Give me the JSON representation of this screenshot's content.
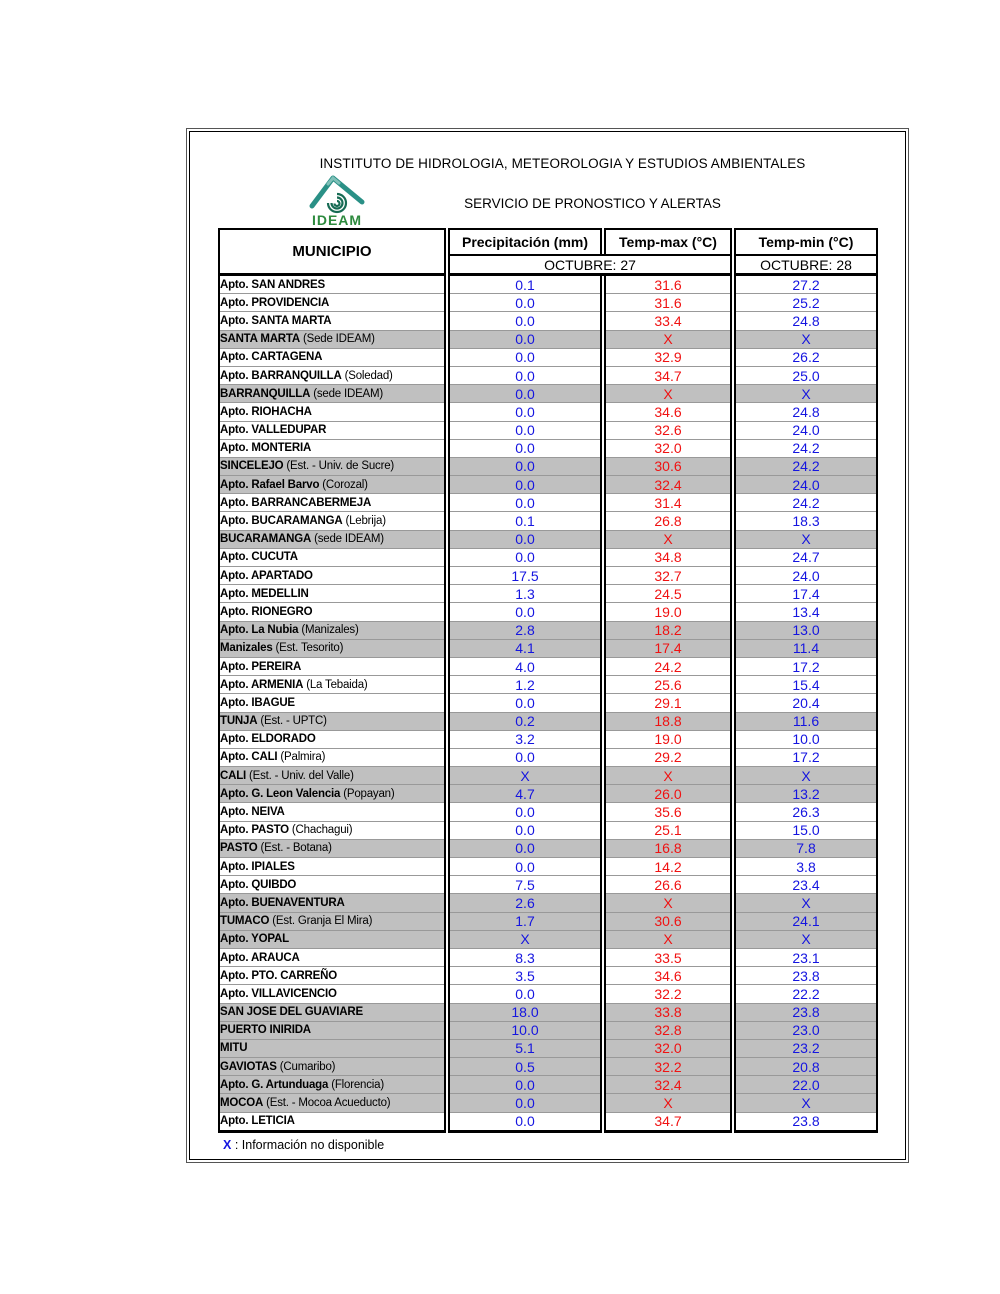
{
  "header": {
    "title": "INSTITUTO DE HIDROLOGIA, METEOROLOGIA Y ESTUDIOS AMBIENTALES",
    "subtitle": "SERVICIO DE PRONOSTICO Y ALERTAS",
    "logo_text": "IDEAM"
  },
  "table": {
    "columns": {
      "municipio": "MUNICIPIO",
      "precip": "Precipitación (mm)",
      "tmax": "Temp-max (°C)",
      "tmin": "Temp-min (°C)"
    },
    "date_headers": {
      "left": "OCTUBRE: 27",
      "right": "OCTUBRE: 28"
    },
    "rows": [
      {
        "name": "Apto. SAN ANDRES",
        "note": "",
        "shaded": false,
        "precip": "0.1",
        "tmax": "31.6",
        "tmin": "27.2"
      },
      {
        "name": "Apto. PROVIDENCIA",
        "note": "",
        "shaded": false,
        "precip": "0.0",
        "tmax": "31.6",
        "tmin": "25.2"
      },
      {
        "name": "Apto. SANTA MARTA",
        "note": "",
        "shaded": false,
        "precip": "0.0",
        "tmax": "33.4",
        "tmin": "24.8"
      },
      {
        "name": "SANTA MARTA",
        "note": "(Sede IDEAM)",
        "shaded": true,
        "precip": "0.0",
        "tmax": "X",
        "tmin": "X"
      },
      {
        "name": "Apto. CARTAGENA",
        "note": "",
        "shaded": false,
        "precip": "0.0",
        "tmax": "32.9",
        "tmin": "26.2"
      },
      {
        "name": "Apto. BARRANQUILLA",
        "note": "(Soledad)",
        "shaded": false,
        "precip": "0.0",
        "tmax": "34.7",
        "tmin": "25.0"
      },
      {
        "name": "BARRANQUILLA",
        "note": "(sede IDEAM)",
        "shaded": true,
        "precip": "0.0",
        "tmax": "X",
        "tmin": "X"
      },
      {
        "name": "Apto. RIOHACHA",
        "note": "",
        "shaded": false,
        "precip": "0.0",
        "tmax": "34.6",
        "tmin": "24.8"
      },
      {
        "name": "Apto. VALLEDUPAR",
        "note": "",
        "shaded": false,
        "precip": "0.0",
        "tmax": "32.6",
        "tmin": "24.0"
      },
      {
        "name": "Apto. MONTERIA",
        "note": "",
        "shaded": false,
        "precip": "0.0",
        "tmax": "32.0",
        "tmin": "24.2"
      },
      {
        "name": "SINCELEJO",
        "note": "(Est. - Univ. de Sucre)",
        "shaded": true,
        "precip": "0.0",
        "tmax": "30.6",
        "tmin": "24.2"
      },
      {
        "name": "Apto. Rafael Barvo",
        "note": "(Corozal)",
        "shaded": true,
        "precip": "0.0",
        "tmax": "32.4",
        "tmin": "24.0"
      },
      {
        "name": "Apto. BARRANCABERMEJA",
        "note": "",
        "shaded": false,
        "precip": "0.0",
        "tmax": "31.4",
        "tmin": "24.2"
      },
      {
        "name": "Apto. BUCARAMANGA",
        "note": "(Lebrija)",
        "shaded": false,
        "precip": "0.1",
        "tmax": "26.8",
        "tmin": "18.3"
      },
      {
        "name": "BUCARAMANGA",
        "note": "(sede IDEAM)",
        "shaded": true,
        "precip": "0.0",
        "tmax": "X",
        "tmin": "X"
      },
      {
        "name": "Apto. CUCUTA",
        "note": "",
        "shaded": false,
        "precip": "0.0",
        "tmax": "34.8",
        "tmin": "24.7"
      },
      {
        "name": "Apto. APARTADO",
        "note": "",
        "shaded": false,
        "precip": "17.5",
        "tmax": "32.7",
        "tmin": "24.0"
      },
      {
        "name": "Apto. MEDELLIN",
        "note": "",
        "shaded": false,
        "precip": "1.3",
        "tmax": "24.5",
        "tmin": "17.4"
      },
      {
        "name": "Apto. RIONEGRO",
        "note": "",
        "shaded": false,
        "precip": "0.0",
        "tmax": "19.0",
        "tmin": "13.4"
      },
      {
        "name": "Apto. La Nubia",
        "note": "(Manizales)",
        "shaded": true,
        "precip": "2.8",
        "tmax": "18.2",
        "tmin": "13.0"
      },
      {
        "name": "Manizales",
        "note": "(Est. Tesorito)",
        "shaded": true,
        "precip": "4.1",
        "tmax": "17.4",
        "tmin": "11.4"
      },
      {
        "name": "Apto. PEREIRA",
        "note": "",
        "shaded": false,
        "precip": "4.0",
        "tmax": "24.2",
        "tmin": "17.2"
      },
      {
        "name": "Apto. ARMENIA",
        "note": "(La Tebaida)",
        "shaded": false,
        "precip": "1.2",
        "tmax": "25.6",
        "tmin": "15.4"
      },
      {
        "name": "Apto. IBAGUE",
        "note": "",
        "shaded": false,
        "precip": "0.0",
        "tmax": "29.1",
        "tmin": "20.4"
      },
      {
        "name": "TUNJA",
        "note": "(Est. - UPTC)",
        "shaded": true,
        "precip": "0.2",
        "tmax": "18.8",
        "tmin": "11.6"
      },
      {
        "name": "Apto. ELDORADO",
        "note": "",
        "shaded": false,
        "precip": "3.2",
        "tmax": "19.0",
        "tmin": "10.0"
      },
      {
        "name": "Apto. CALI",
        "note": "(Palmira)",
        "shaded": false,
        "precip": "0.0",
        "tmax": "29.2",
        "tmin": "17.2"
      },
      {
        "name": "CALI",
        "note": "(Est. - Univ. del Valle)",
        "shaded": true,
        "precip": "X",
        "tmax": "X",
        "tmin": "X"
      },
      {
        "name": "Apto. G. Leon Valencia",
        "note": "(Popayan)",
        "shaded": true,
        "precip": "4.7",
        "tmax": "26.0",
        "tmin": "13.2"
      },
      {
        "name": "Apto. NEIVA",
        "note": "",
        "shaded": false,
        "precip": "0.0",
        "tmax": "35.6",
        "tmin": "26.3"
      },
      {
        "name": "Apto. PASTO",
        "note": "(Chachagui)",
        "shaded": false,
        "precip": "0.0",
        "tmax": "25.1",
        "tmin": "15.0"
      },
      {
        "name": "PASTO",
        "note": "(Est. - Botana)",
        "shaded": true,
        "precip": "0.0",
        "tmax": "16.8",
        "tmin": "7.8"
      },
      {
        "name": "Apto. IPIALES",
        "note": "",
        "shaded": false,
        "precip": "0.0",
        "tmax": "14.2",
        "tmin": "3.8"
      },
      {
        "name": "Apto. QUIBDO",
        "note": "",
        "shaded": false,
        "precip": "7.5",
        "tmax": "26.6",
        "tmin": "23.4"
      },
      {
        "name": "Apto. BUENAVENTURA",
        "note": "",
        "shaded": true,
        "precip": "2.6",
        "tmax": "X",
        "tmin": "X"
      },
      {
        "name": "TUMACO",
        "note": "(Est. Granja El Mira)",
        "shaded": true,
        "precip": "1.7",
        "tmax": "30.6",
        "tmin": "24.1"
      },
      {
        "name": "Apto. YOPAL",
        "note": "",
        "shaded": true,
        "precip": "X",
        "tmax": "X",
        "tmin": "X"
      },
      {
        "name": "Apto. ARAUCA",
        "note": "",
        "shaded": false,
        "precip": "8.3",
        "tmax": "33.5",
        "tmin": "23.1"
      },
      {
        "name": "Apto. PTO.  CARREÑO",
        "note": "",
        "shaded": false,
        "precip": "3.5",
        "tmax": "34.6",
        "tmin": "23.8"
      },
      {
        "name": "Apto. VILLAVICENCIO",
        "note": "",
        "shaded": false,
        "precip": "0.0",
        "tmax": "32.2",
        "tmin": "22.2"
      },
      {
        "name": "SAN JOSE DEL GUAVIARE",
        "note": "",
        "shaded": true,
        "precip": "18.0",
        "tmax": "33.8",
        "tmin": "23.8"
      },
      {
        "name": "PUERTO INIRIDA",
        "note": "",
        "shaded": true,
        "precip": "10.0",
        "tmax": "32.8",
        "tmin": "23.0"
      },
      {
        "name": "MITU",
        "note": "",
        "shaded": true,
        "precip": "5.1",
        "tmax": "32.0",
        "tmin": "23.2"
      },
      {
        "name": "GAVIOTAS",
        "note": "(Cumaribo)",
        "shaded": true,
        "precip": "0.5",
        "tmax": "32.2",
        "tmin": "20.8"
      },
      {
        "name": "Apto. G. Artunduaga",
        "note": "(Florencia)",
        "shaded": true,
        "precip": "0.0",
        "tmax": "32.4",
        "tmin": "22.0"
      },
      {
        "name": "MOCOA",
        "note": "(Est. - Mocoa Acueducto)",
        "shaded": true,
        "precip": "0.0",
        "tmax": "X",
        "tmin": "X"
      },
      {
        "name": "Apto. LETICIA",
        "note": "",
        "shaded": false,
        "precip": "0.0",
        "tmax": "34.7",
        "tmin": "23.8"
      }
    ]
  },
  "footer": {
    "legend_symbol": "X",
    "legend_text": ": Información no disponible"
  },
  "colors": {
    "value_blue": "#1515e0",
    "value_red": "#f01212",
    "shaded_row": "#c0c0c0",
    "logo_green": "#2d8a3e",
    "logo_teal": "#2a9086"
  }
}
